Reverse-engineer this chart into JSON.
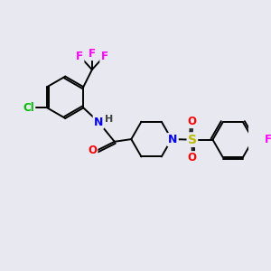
{
  "background_color": "#e8e8f0",
  "figsize": [
    3.0,
    3.0
  ],
  "dpi": 100,
  "atom_colors": {
    "C": "#000000",
    "N": "#0000ff",
    "O": "#ff0000",
    "S": "#bbbb00",
    "F": "#ff00ff",
    "Cl": "#00bb00",
    "H": "#404040"
  },
  "bond_color": "#000000",
  "bond_width": 1.4,
  "font_size_atom": 8.5
}
